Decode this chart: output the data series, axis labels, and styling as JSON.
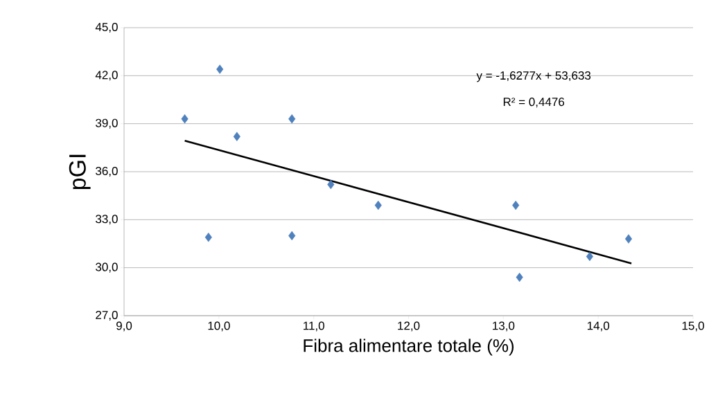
{
  "chart_data": {
    "type": "scatter",
    "xlabel": "Fibra alimentare totale (%)",
    "ylabel": "pGI",
    "xlim": [
      9,
      15
    ],
    "ylim": [
      27,
      45
    ],
    "xticks": [
      {
        "value": 9,
        "label": "9,0"
      },
      {
        "value": 10,
        "label": "10,0"
      },
      {
        "value": 11,
        "label": "11,0"
      },
      {
        "value": 12,
        "label": "12,0"
      },
      {
        "value": 13,
        "label": "13,0"
      },
      {
        "value": 14,
        "label": "14,0"
      },
      {
        "value": 15,
        "label": "15,0"
      }
    ],
    "yticks": [
      {
        "value": 27,
        "label": "27,0"
      },
      {
        "value": 30,
        "label": "30,0"
      },
      {
        "value": 33,
        "label": "33,0"
      },
      {
        "value": 36,
        "label": "36,0"
      },
      {
        "value": 39,
        "label": "39,0"
      },
      {
        "value": 42,
        "label": "42,0"
      },
      {
        "value": 45,
        "label": "45,0"
      }
    ],
    "grid": "y",
    "marker": "diamond",
    "series": [
      {
        "color": "#4f81bd",
        "x": [
          9.64,
          10.01,
          10.19,
          9.89,
          10.77,
          10.77,
          11.18,
          11.68,
          13.13,
          13.17,
          13.91,
          14.32
        ],
        "values": [
          39.3,
          42.4,
          38.2,
          31.9,
          39.3,
          32.0,
          35.2,
          33.9,
          33.9,
          29.4,
          30.7,
          31.8
        ]
      },
      {
        "type": "line",
        "marker": "none",
        "color": "#000000",
        "x": [
          9.64,
          14.35
        ],
        "values": [
          37.94,
          30.27
        ]
      }
    ],
    "annotations": [
      "y = -1,6277x + 53,633",
      "R² = 0,4476"
    ]
  }
}
